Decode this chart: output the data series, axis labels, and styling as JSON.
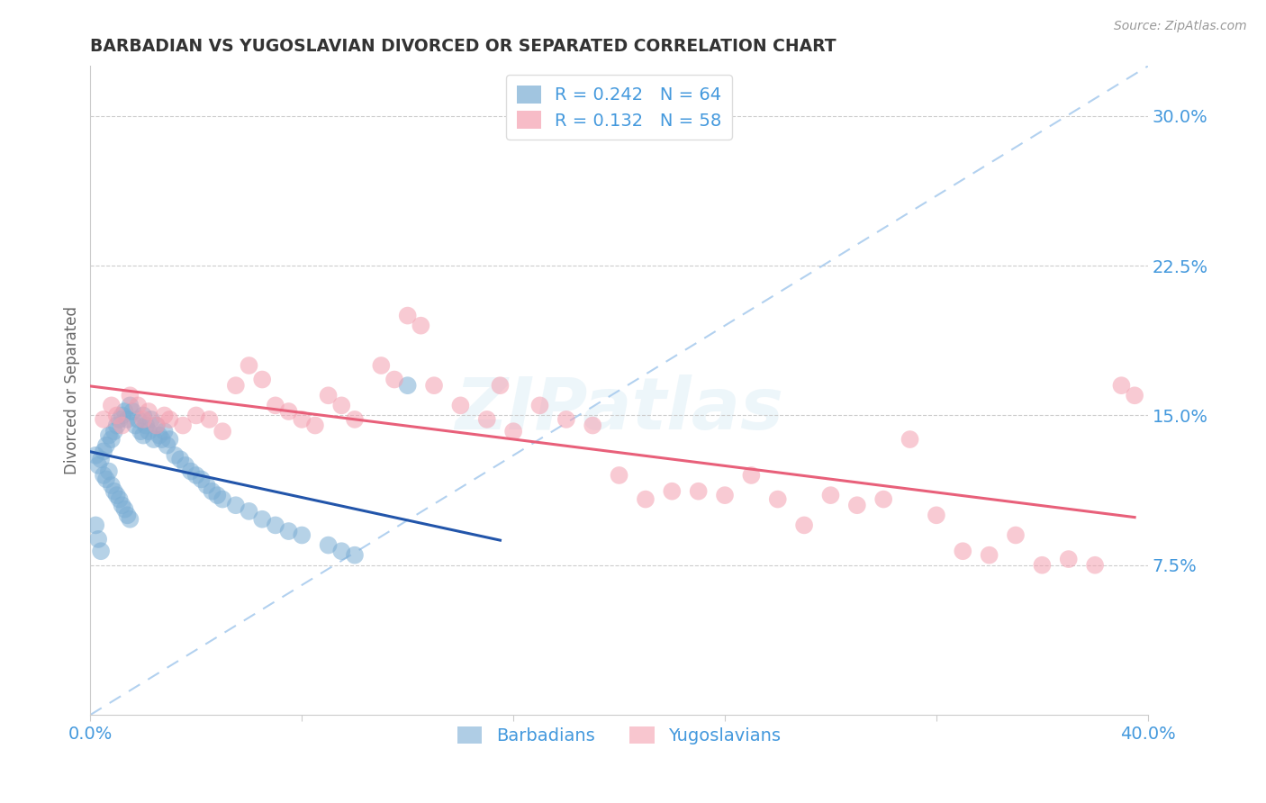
{
  "title": "BARBADIAN VS YUGOSLAVIAN DIVORCED OR SEPARATED CORRELATION CHART",
  "source": "Source: ZipAtlas.com",
  "ylabel": "Divorced or Separated",
  "legend_labels": [
    "Barbadians",
    "Yugoslavians"
  ],
  "r_barbadian": 0.242,
  "n_barbadian": 64,
  "r_yugoslavian": 0.132,
  "n_yugoslavian": 58,
  "xmin": 0.0,
  "xmax": 0.4,
  "ymin": 0.0,
  "ymax": 0.325,
  "yticks": [
    0.075,
    0.15,
    0.225,
    0.3
  ],
  "ytick_labels": [
    "7.5%",
    "15.0%",
    "22.5%",
    "30.0%"
  ],
  "xticks": [
    0.0,
    0.08,
    0.16,
    0.24,
    0.32,
    0.4
  ],
  "xtick_labels": [
    "0.0%",
    "",
    "",
    "",
    "",
    "40.0%"
  ],
  "color_barbadian": "#7aadd4",
  "color_yugoslavian": "#f4a0b0",
  "color_trendline_barbadian": "#2255aa",
  "color_trendline_yugoslavian": "#e8607a",
  "color_dashed": "#aaccee",
  "color_axis_labels": "#4499dd",
  "barbadian_x": [
    0.002,
    0.003,
    0.004,
    0.005,
    0.005,
    0.006,
    0.006,
    0.007,
    0.007,
    0.008,
    0.008,
    0.009,
    0.009,
    0.01,
    0.01,
    0.011,
    0.011,
    0.012,
    0.012,
    0.013,
    0.013,
    0.014,
    0.014,
    0.015,
    0.015,
    0.016,
    0.017,
    0.018,
    0.019,
    0.02,
    0.02,
    0.021,
    0.022,
    0.023,
    0.024,
    0.025,
    0.026,
    0.027,
    0.028,
    0.029,
    0.03,
    0.032,
    0.034,
    0.036,
    0.038,
    0.04,
    0.042,
    0.044,
    0.046,
    0.048,
    0.05,
    0.055,
    0.06,
    0.065,
    0.07,
    0.075,
    0.08,
    0.09,
    0.095,
    0.1,
    0.002,
    0.003,
    0.004,
    0.12
  ],
  "barbadian_y": [
    0.13,
    0.125,
    0.128,
    0.132,
    0.12,
    0.135,
    0.118,
    0.14,
    0.122,
    0.138,
    0.115,
    0.142,
    0.112,
    0.145,
    0.11,
    0.148,
    0.108,
    0.15,
    0.105,
    0.152,
    0.103,
    0.148,
    0.1,
    0.155,
    0.098,
    0.152,
    0.145,
    0.148,
    0.142,
    0.15,
    0.14,
    0.145,
    0.142,
    0.148,
    0.138,
    0.145,
    0.14,
    0.138,
    0.142,
    0.135,
    0.138,
    0.13,
    0.128,
    0.125,
    0.122,
    0.12,
    0.118,
    0.115,
    0.112,
    0.11,
    0.108,
    0.105,
    0.102,
    0.098,
    0.095,
    0.092,
    0.09,
    0.085,
    0.082,
    0.08,
    0.095,
    0.088,
    0.082,
    0.165
  ],
  "yugoslavian_x": [
    0.005,
    0.008,
    0.01,
    0.012,
    0.015,
    0.018,
    0.02,
    0.022,
    0.025,
    0.028,
    0.03,
    0.035,
    0.04,
    0.045,
    0.05,
    0.055,
    0.06,
    0.065,
    0.07,
    0.075,
    0.08,
    0.085,
    0.09,
    0.095,
    0.1,
    0.11,
    0.115,
    0.12,
    0.125,
    0.13,
    0.14,
    0.15,
    0.155,
    0.16,
    0.17,
    0.18,
    0.19,
    0.2,
    0.21,
    0.22,
    0.23,
    0.24,
    0.25,
    0.26,
    0.27,
    0.28,
    0.29,
    0.3,
    0.31,
    0.32,
    0.33,
    0.34,
    0.35,
    0.36,
    0.37,
    0.38,
    0.39,
    0.395
  ],
  "yugoslavian_y": [
    0.148,
    0.155,
    0.15,
    0.145,
    0.16,
    0.155,
    0.148,
    0.152,
    0.145,
    0.15,
    0.148,
    0.145,
    0.15,
    0.148,
    0.142,
    0.165,
    0.175,
    0.168,
    0.155,
    0.152,
    0.148,
    0.145,
    0.16,
    0.155,
    0.148,
    0.175,
    0.168,
    0.2,
    0.195,
    0.165,
    0.155,
    0.148,
    0.165,
    0.142,
    0.155,
    0.148,
    0.145,
    0.12,
    0.108,
    0.112,
    0.112,
    0.11,
    0.12,
    0.108,
    0.095,
    0.11,
    0.105,
    0.108,
    0.138,
    0.1,
    0.082,
    0.08,
    0.09,
    0.075,
    0.078,
    0.075,
    0.165,
    0.16
  ]
}
